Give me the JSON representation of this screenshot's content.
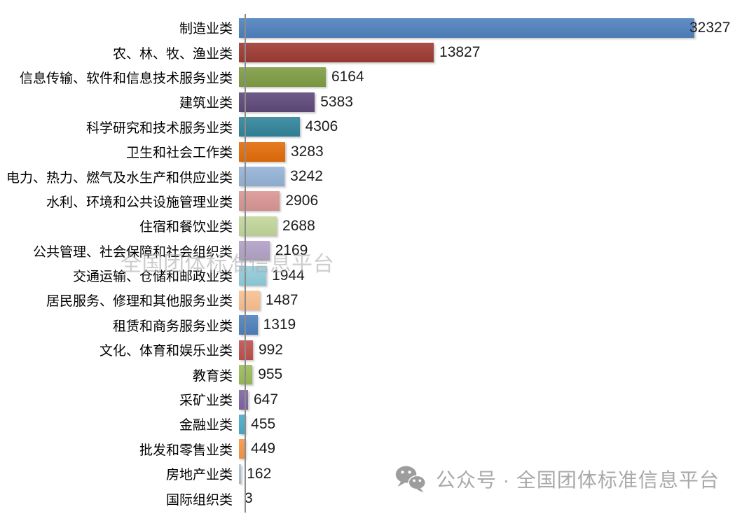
{
  "chart_data": {
    "type": "bar",
    "orientation": "horizontal",
    "title": "",
    "xlabel": "",
    "ylabel": "",
    "grid": false,
    "legend": false,
    "data_labels": true,
    "xlim": [
      0,
      33000
    ],
    "categories": [
      "制造业类",
      "农、林、牧、渔业类",
      "信息传输、软件和信息技术服务业类",
      "建筑业类",
      "科学研究和技术服务业类",
      "卫生和社会工作类",
      "电力、热力、燃气及水生产和供应业类",
      "水利、环境和公共设施管理业类",
      "住宿和餐饮业类",
      "公共管理、社会保障和社会组织类",
      "交通运输、仓储和邮政业类",
      "居民服务、修理和其他服务业类",
      "租赁和商务服务业类",
      "文化、体育和娱乐业类",
      "教育类",
      "采矿业类",
      "金融业类",
      "批发和零售业类",
      "房地产业类",
      "国际组织类"
    ],
    "values": [
      32327,
      13827,
      6164,
      5383,
      4306,
      3283,
      3242,
      2906,
      2688,
      2169,
      1944,
      1487,
      1319,
      992,
      955,
      647,
      455,
      449,
      162,
      3
    ],
    "bar_colors": [
      "#4F81BD",
      "#9E3B33",
      "#7E9D44",
      "#5F497A",
      "#31849B",
      "#E36C09",
      "#95B3D7",
      "#D99694",
      "#C3D69B",
      "#B2A1C7",
      "#92CDDC",
      "#FAC08F",
      "#4F81BD",
      "#C0504D",
      "#9BBB59",
      "#8064A2",
      "#4BACC6",
      "#F79646",
      "#B0BFD9",
      "#D9DDE8"
    ],
    "axis_color": "#8c8c8c",
    "value_label_color": "#1c1c1c",
    "category_label_color": "#000000"
  },
  "watermarks": {
    "center_text": "全国团体标准信息平台",
    "bottom_text": "公众号 · 全国团体标准信息平台",
    "bottom_icon": "wechat-icon",
    "center_color": "#acacac",
    "bottom_color": "#a9a9a9"
  }
}
